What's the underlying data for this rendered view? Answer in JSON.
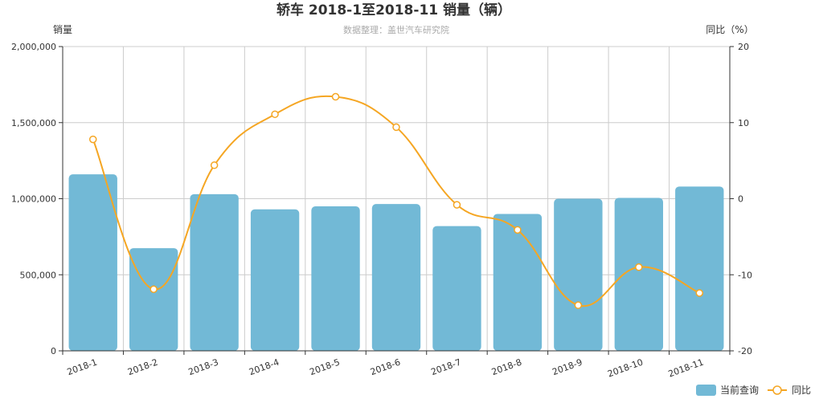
{
  "chart_data": {
    "type": "bar",
    "title": "轿车 2018-1至2018-11 销量（辆）",
    "subtitle": "数据整理：盖世汽车研究院",
    "y_left_label": "销量",
    "y_right_label": "同比（%）",
    "categories": [
      "2018-1",
      "2018-2",
      "2018-3",
      "2018-4",
      "2018-5",
      "2018-6",
      "2018-7",
      "2018-8",
      "2018-9",
      "2018-10",
      "2018-11"
    ],
    "y_left_range": [
      0,
      2000000
    ],
    "y_left_ticks": [
      "0",
      "500,000",
      "1,000,000",
      "1,500,000",
      "2,000,000"
    ],
    "y_right_range": [
      -20,
      20
    ],
    "y_right_ticks": [
      "-20",
      "-10",
      "0",
      "10",
      "20"
    ],
    "grid": true,
    "legend_position": "bottom-right",
    "series": [
      {
        "name": "当前查询",
        "type": "bar",
        "axis": "left",
        "color": "#72b9d6",
        "values": [
          1160000,
          675000,
          1030000,
          930000,
          950000,
          965000,
          820000,
          900000,
          1000000,
          1005000,
          1080000
        ]
      },
      {
        "name": "同比",
        "type": "line",
        "axis": "right",
        "color": "#f5a623",
        "values": [
          7.8,
          -11.9,
          4.4,
          11.1,
          13.4,
          9.4,
          -0.8,
          -4.1,
          -14.0,
          -9.0,
          -12.4
        ]
      }
    ]
  }
}
